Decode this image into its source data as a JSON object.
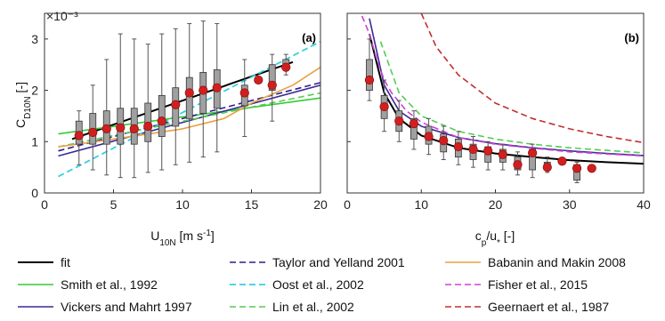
{
  "figure": {
    "exponent_label": "×10⁻³",
    "ylabel": "C",
    "ylabel_sub": "D10N",
    "ylabel_unit": " [-]"
  },
  "chart_data": [
    {
      "type": "box",
      "panel_label": "(a)",
      "xlabel": "U",
      "xlabel_sub": "10N",
      "xlabel_unit": " [m s",
      "xlabel_sup": "-1",
      "xlabel_tail": "]",
      "xlim": [
        0,
        20
      ],
      "ylim": [
        0,
        3.5
      ],
      "xticks": [
        0,
        5,
        10,
        15,
        20
      ],
      "yticks": [
        0,
        1,
        2,
        3
      ],
      "boxes": [
        {
          "x": 2.5,
          "lo": 0.55,
          "q1": 0.95,
          "q3": 1.4,
          "hi": 1.6
        },
        {
          "x": 3.5,
          "lo": 0.45,
          "q1": 0.95,
          "q3": 1.55,
          "hi": 2.1
        },
        {
          "x": 4.5,
          "lo": 0.35,
          "q1": 0.95,
          "q3": 1.6,
          "hi": 2.6
        },
        {
          "x": 5.5,
          "lo": 0.3,
          "q1": 0.95,
          "q3": 1.65,
          "hi": 3.1
        },
        {
          "x": 6.5,
          "lo": 0.3,
          "q1": 0.95,
          "q3": 1.65,
          "hi": 3.0
        },
        {
          "x": 7.5,
          "lo": 0.4,
          "q1": 1.0,
          "q3": 1.75,
          "hi": 2.9
        },
        {
          "x": 8.5,
          "lo": 0.45,
          "q1": 1.1,
          "q3": 1.9,
          "hi": 3.1
        },
        {
          "x": 9.5,
          "lo": 0.55,
          "q1": 1.3,
          "q3": 2.05,
          "hi": 3.2
        },
        {
          "x": 10.5,
          "lo": 0.6,
          "q1": 1.45,
          "q3": 2.25,
          "hi": 3.3
        },
        {
          "x": 11.5,
          "lo": 0.7,
          "q1": 1.55,
          "q3": 2.35,
          "hi": 3.35
        },
        {
          "x": 12.5,
          "lo": 0.8,
          "q1": 1.65,
          "q3": 2.4,
          "hi": 3.3
        },
        {
          "x": 14.5,
          "lo": 1.1,
          "q1": 1.7,
          "q3": 2.1,
          "hi": 2.6
        },
        {
          "x": 16.5,
          "lo": 1.4,
          "q1": 2.0,
          "q3": 2.5,
          "hi": 2.7
        },
        {
          "x": 17.5,
          "lo": 2.3,
          "q1": 2.45,
          "q3": 2.6,
          "hi": 2.7
        }
      ],
      "mean_points": [
        {
          "x": 2.5,
          "y": 1.12
        },
        {
          "x": 3.5,
          "y": 1.18
        },
        {
          "x": 4.5,
          "y": 1.25
        },
        {
          "x": 5.5,
          "y": 1.27
        },
        {
          "x": 6.5,
          "y": 1.25
        },
        {
          "x": 7.5,
          "y": 1.3
        },
        {
          "x": 8.5,
          "y": 1.4
        },
        {
          "x": 9.5,
          "y": 1.72
        },
        {
          "x": 10.5,
          "y": 1.95
        },
        {
          "x": 11.5,
          "y": 2.0
        },
        {
          "x": 12.5,
          "y": 2.05
        },
        {
          "x": 14.5,
          "y": 1.95
        },
        {
          "x": 15.5,
          "y": 2.2
        },
        {
          "x": 16.5,
          "y": 2.1
        },
        {
          "x": 17.5,
          "y": 2.45
        }
      ],
      "curves": [
        {
          "key": "fit",
          "x": [
            2,
            18
          ],
          "y": [
            1.05,
            2.55
          ]
        },
        {
          "key": "smith",
          "x": [
            1,
            20
          ],
          "y": [
            1.15,
            1.85
          ]
        },
        {
          "key": "vickers",
          "x": [
            1,
            20
          ],
          "y": [
            0.72,
            2.1
          ]
        },
        {
          "key": "taylor",
          "x": [
            1,
            20
          ],
          "y": [
            0.82,
            2.15
          ]
        },
        {
          "key": "oost",
          "x": [
            1,
            20
          ],
          "y": [
            0.32,
            2.95
          ]
        },
        {
          "key": "lin",
          "x": [
            1,
            20
          ],
          "y": [
            0.9,
            1.95
          ]
        },
        {
          "key": "babanin",
          "x": [
            1,
            5,
            10,
            13,
            15,
            18,
            20
          ],
          "y": [
            0.9,
            1.05,
            1.25,
            1.45,
            1.75,
            2.1,
            2.45
          ]
        }
      ]
    },
    {
      "type": "box",
      "panel_label": "(b)",
      "xlabel": "c",
      "xlabel_sub": "p",
      "xlabel_unit": "/u",
      "xlabel_sub2": "*",
      "xlabel_tail": " [-]",
      "xlim": [
        0,
        40
      ],
      "ylim": [
        0,
        3.5
      ],
      "xticks": [
        0,
        10,
        20,
        30,
        40
      ],
      "yticks": [
        0,
        1,
        2,
        3
      ],
      "boxes": [
        {
          "x": 3,
          "lo": 1.8,
          "q1": 2.0,
          "q3": 2.6,
          "hi": 3.0
        },
        {
          "x": 5,
          "lo": 1.2,
          "q1": 1.45,
          "q3": 1.9,
          "hi": 2.2
        },
        {
          "x": 7,
          "lo": 1.0,
          "q1": 1.2,
          "q3": 1.6,
          "hi": 1.8
        },
        {
          "x": 9,
          "lo": 0.85,
          "q1": 1.05,
          "q3": 1.45,
          "hi": 1.6
        },
        {
          "x": 11,
          "lo": 0.75,
          "q1": 0.95,
          "q3": 1.3,
          "hi": 1.45
        },
        {
          "x": 13,
          "lo": 0.65,
          "q1": 0.8,
          "q3": 1.15,
          "hi": 1.3
        },
        {
          "x": 15,
          "lo": 0.55,
          "q1": 0.7,
          "q3": 1.05,
          "hi": 1.2
        },
        {
          "x": 17,
          "lo": 0.5,
          "q1": 0.65,
          "q3": 0.95,
          "hi": 1.1
        },
        {
          "x": 19,
          "lo": 0.45,
          "q1": 0.6,
          "q3": 0.9,
          "hi": 1.0
        },
        {
          "x": 21,
          "lo": 0.45,
          "q1": 0.6,
          "q3": 0.85,
          "hi": 0.95
        },
        {
          "x": 23,
          "lo": 0.35,
          "q1": 0.45,
          "q3": 0.7,
          "hi": 0.8
        },
        {
          "x": 25,
          "lo": 0.3,
          "q1": 0.45,
          "q3": 0.85,
          "hi": 0.95
        },
        {
          "x": 27,
          "lo": 0.4,
          "q1": 0.45,
          "q3": 0.6,
          "hi": 0.7
        },
        {
          "x": 31,
          "lo": 0.2,
          "q1": 0.25,
          "q3": 0.55,
          "hi": 0.6
        }
      ],
      "mean_points": [
        {
          "x": 3,
          "y": 2.2
        },
        {
          "x": 5,
          "y": 1.68
        },
        {
          "x": 7,
          "y": 1.4
        },
        {
          "x": 9,
          "y": 1.35
        },
        {
          "x": 11,
          "y": 1.1
        },
        {
          "x": 13,
          "y": 1.02
        },
        {
          "x": 15,
          "y": 0.9
        },
        {
          "x": 17,
          "y": 0.85
        },
        {
          "x": 19,
          "y": 0.82
        },
        {
          "x": 21,
          "y": 0.75
        },
        {
          "x": 23,
          "y": 0.55
        },
        {
          "x": 25,
          "y": 0.78
        },
        {
          "x": 27,
          "y": 0.5
        },
        {
          "x": 29,
          "y": 0.62
        },
        {
          "x": 31,
          "y": 0.48
        },
        {
          "x": 33,
          "y": 0.48
        }
      ],
      "curves": [
        {
          "key": "fit",
          "x": [
            3,
            5,
            7,
            10,
            15,
            20,
            25,
            30,
            35,
            40
          ],
          "y": [
            3.1,
            1.95,
            1.45,
            1.12,
            0.88,
            0.77,
            0.7,
            0.64,
            0.6,
            0.57
          ]
        },
        {
          "key": "vickers",
          "x": [
            3,
            5,
            7,
            10,
            15,
            20,
            25,
            30,
            35,
            40
          ],
          "y": [
            3.4,
            2.1,
            1.6,
            1.3,
            1.08,
            0.96,
            0.88,
            0.82,
            0.77,
            0.73
          ]
        },
        {
          "key": "lin",
          "x": [
            4.5,
            7,
            10,
            15,
            20,
            25,
            30,
            35,
            40
          ],
          "y": [
            2.95,
            1.95,
            1.5,
            1.2,
            1.05,
            0.95,
            0.88,
            0.83,
            0.78
          ]
        },
        {
          "key": "fisher",
          "x": [
            2,
            3,
            4,
            5,
            6,
            8,
            10,
            15,
            20,
            30,
            40
          ],
          "y": [
            3.45,
            3.1,
            2.6,
            2.2,
            1.95,
            1.6,
            1.38,
            1.08,
            0.95,
            0.8,
            0.72
          ]
        },
        {
          "key": "geernaert",
          "x": [
            10,
            12,
            15,
            20,
            25,
            30,
            35,
            40
          ],
          "y": [
            3.5,
            2.85,
            2.3,
            1.75,
            1.45,
            1.25,
            1.1,
            0.98
          ]
        }
      ]
    }
  ],
  "series_styles": {
    "fit": {
      "color": "#000000",
      "dash": "",
      "width": 2
    },
    "smith": {
      "color": "#33cc33",
      "dash": "",
      "width": 1.6
    },
    "vickers": {
      "color": "#3b2a99",
      "dash": "",
      "width": 1.6
    },
    "taylor": {
      "color": "#2e1e8a",
      "dash": "7 4",
      "width": 1.6
    },
    "oost": {
      "color": "#33d0e0",
      "dash": "7 4",
      "width": 1.8
    },
    "lin": {
      "color": "#55cc55",
      "dash": "7 4",
      "width": 1.6
    },
    "babanin": {
      "color": "#e8a040",
      "dash": "",
      "width": 1.6
    },
    "fisher": {
      "color": "#d040d0",
      "dash": "7 4",
      "width": 1.6
    },
    "geernaert": {
      "color": "#c03030",
      "dash": "7 4",
      "width": 1.6
    }
  },
  "legend": {
    "placement": "bottom",
    "entries": [
      {
        "key": "fit",
        "label": "fit"
      },
      {
        "key": "taylor",
        "label": "Taylor and Yelland 2001"
      },
      {
        "key": "babanin",
        "label": "Babanin and Makin 2008"
      },
      {
        "key": "smith",
        "label": "Smith et al., 1992"
      },
      {
        "key": "oost",
        "label": "Oost et al., 2002"
      },
      {
        "key": "fisher",
        "label": "Fisher et al., 2015"
      },
      {
        "key": "vickers",
        "label": "Vickers and Mahrt 1997"
      },
      {
        "key": "lin",
        "label": "Lin et al., 2002"
      },
      {
        "key": "geernaert",
        "label": "Geernaert et al., 1987"
      }
    ]
  },
  "colors": {
    "box_fill": "#a0a0a0",
    "box_edge": "#333333",
    "whisker": "#555555",
    "mean_point": "#d11f1f"
  }
}
